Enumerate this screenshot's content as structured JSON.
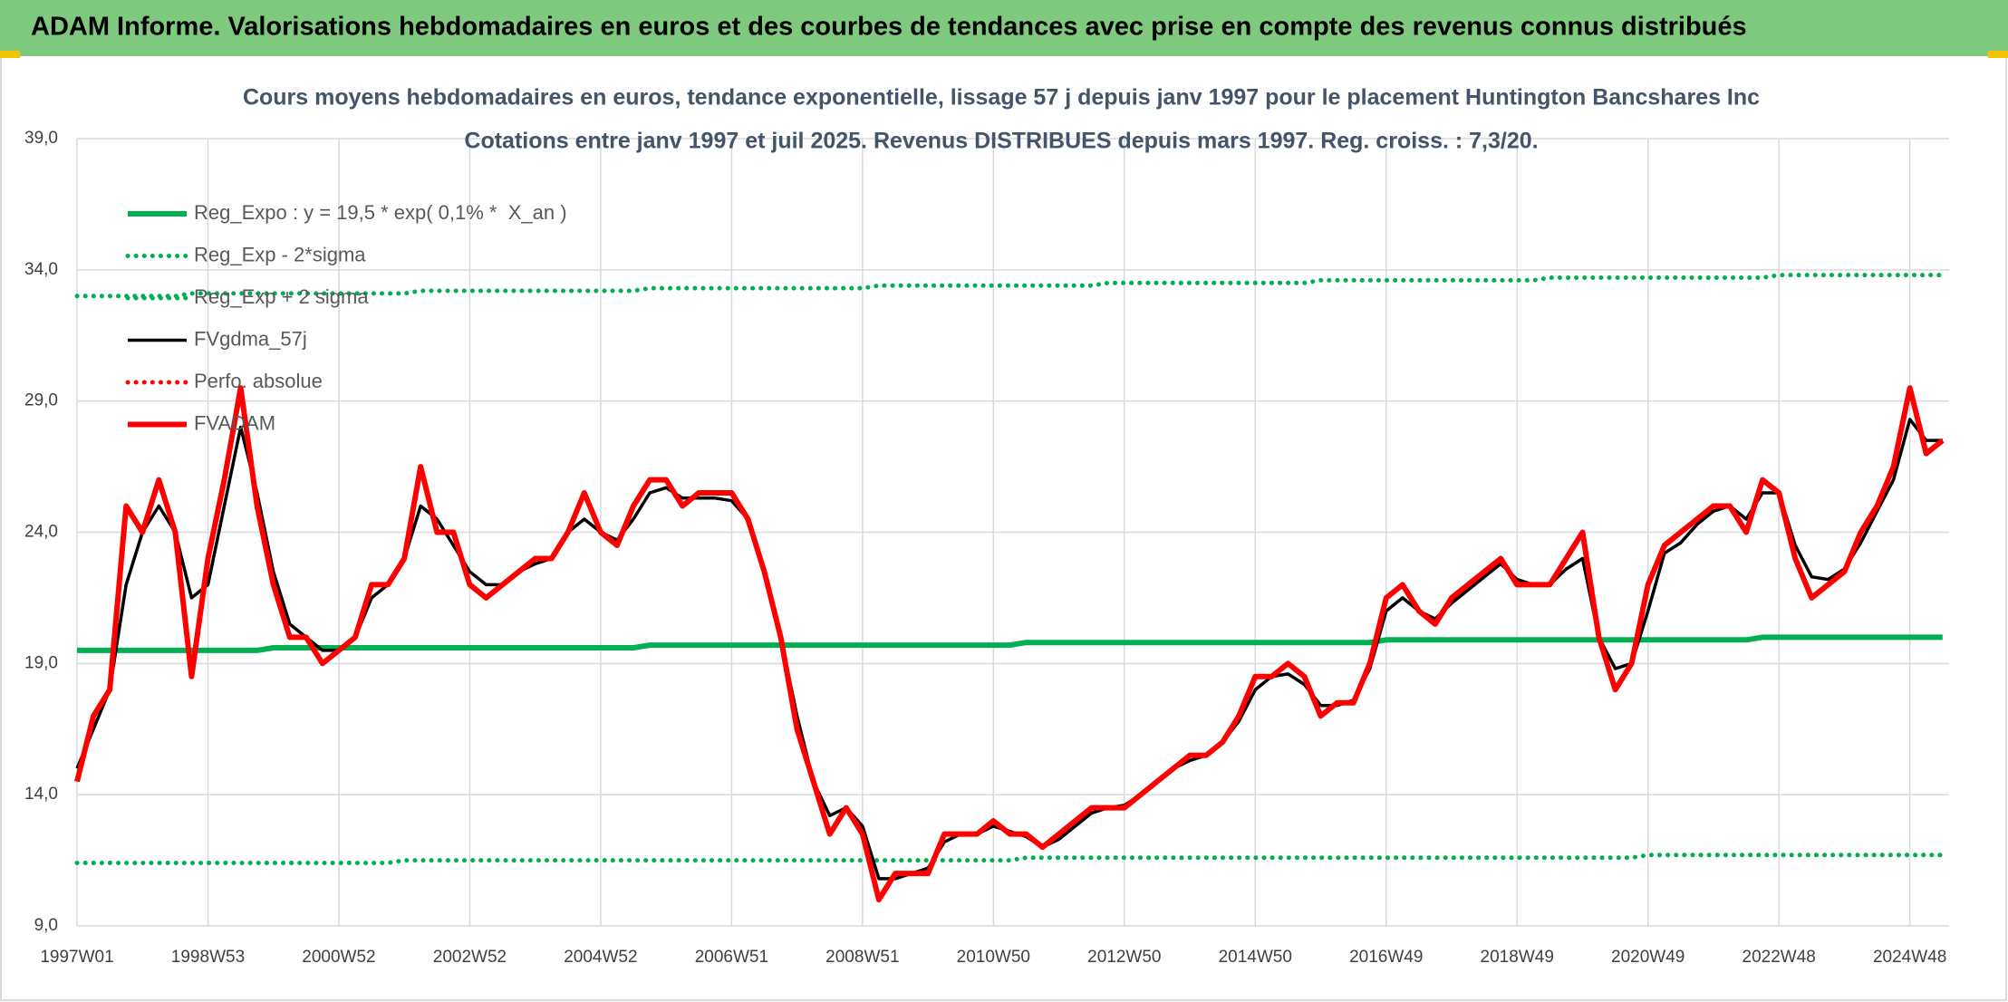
{
  "header_title": "ADAM Informe. Valorisations hebdomadaires en euros et des courbes de tendances avec prise en compte des revenus connus distribués",
  "chart_data": {
    "type": "line",
    "title": "Cours moyens hebdomadaires en euros, tendance exponentielle, lissage 57 j depuis janv 1997 pour le placement Huntington Bancshares Inc",
    "subtitle": "Cotations entre janv 1997 et juil 2025. Revenus DISTRIBUES depuis mars 1997. Reg. croiss. : 7,3/20.",
    "categories": [
      "1997W01",
      null,
      null,
      null,
      null,
      null,
      null,
      null,
      "1998W53",
      null,
      null,
      null,
      null,
      null,
      null,
      null,
      "2000W52",
      null,
      null,
      null,
      null,
      null,
      null,
      null,
      "2002W52",
      null,
      null,
      null,
      null,
      null,
      null,
      null,
      "2004W52",
      null,
      null,
      null,
      null,
      null,
      null,
      null,
      "2006W51",
      null,
      null,
      null,
      null,
      null,
      null,
      null,
      "2008W51",
      null,
      null,
      null,
      null,
      null,
      null,
      null,
      "2010W50",
      null,
      null,
      null,
      null,
      null,
      null,
      null,
      "2012W50",
      null,
      null,
      null,
      null,
      null,
      null,
      null,
      "2014W50",
      null,
      null,
      null,
      null,
      null,
      null,
      null,
      "2016W49",
      null,
      null,
      null,
      null,
      null,
      null,
      null,
      "2018W49",
      null,
      null,
      null,
      null,
      null,
      null,
      null,
      "2020W49",
      null,
      null,
      null,
      null,
      null,
      null,
      null,
      "2022W48",
      null,
      null,
      null,
      null,
      null,
      null,
      null,
      "2024W48",
      null,
      null
    ],
    "ylim": [
      9,
      39.5
    ],
    "yticks": [
      {
        "value": 9,
        "label": "9,0"
      },
      {
        "value": 14,
        "label": "14,0"
      },
      {
        "value": 19,
        "label": "19,0"
      },
      {
        "value": 24,
        "label": "24,0"
      },
      {
        "value": 29,
        "label": "29,0"
      },
      {
        "value": 34,
        "label": "34,0"
      },
      {
        "value": 39,
        "label": "39,0"
      }
    ],
    "grid": true,
    "legend": "top-left",
    "series": [
      {
        "name": "Reg_Expo : y = 19,5 * exp( 0,1% *  X_an )",
        "color": "#00b050",
        "dash": false,
        "values": [
          19.5,
          19.5,
          19.5,
          19.5,
          19.5,
          19.5,
          19.5,
          19.5,
          19.5,
          19.5,
          19.5,
          19.5,
          19.6,
          19.6,
          19.6,
          19.6,
          19.6,
          19.6,
          19.6,
          19.6,
          19.6,
          19.6,
          19.6,
          19.6,
          19.6,
          19.6,
          19.6,
          19.6,
          19.6,
          19.6,
          19.6,
          19.6,
          19.6,
          19.6,
          19.6,
          19.7,
          19.7,
          19.7,
          19.7,
          19.7,
          19.7,
          19.7,
          19.7,
          19.7,
          19.7,
          19.7,
          19.7,
          19.7,
          19.7,
          19.7,
          19.7,
          19.7,
          19.7,
          19.7,
          19.7,
          19.7,
          19.7,
          19.7,
          19.8,
          19.8,
          19.8,
          19.8,
          19.8,
          19.8,
          19.8,
          19.8,
          19.8,
          19.8,
          19.8,
          19.8,
          19.8,
          19.8,
          19.8,
          19.8,
          19.8,
          19.8,
          19.8,
          19.8,
          19.8,
          19.8,
          19.9,
          19.9,
          19.9,
          19.9,
          19.9,
          19.9,
          19.9,
          19.9,
          19.9,
          19.9,
          19.9,
          19.9,
          19.9,
          19.9,
          19.9,
          19.9,
          19.9,
          19.9,
          19.9,
          19.9,
          19.9,
          19.9,
          19.9,
          20.0,
          20.0,
          20.0,
          20.0,
          20.0,
          20.0,
          20.0,
          20.0,
          20.0,
          20.0,
          20.0,
          20.0
        ]
      },
      {
        "name": "Reg_Exp - 2*sigma",
        "color": "#00b050",
        "dash": true,
        "values": [
          11.4,
          11.4,
          11.4,
          11.4,
          11.4,
          11.4,
          11.4,
          11.4,
          11.4,
          11.4,
          11.4,
          11.4,
          11.4,
          11.4,
          11.4,
          11.4,
          11.4,
          11.4,
          11.4,
          11.4,
          11.5,
          11.5,
          11.5,
          11.5,
          11.5,
          11.5,
          11.5,
          11.5,
          11.5,
          11.5,
          11.5,
          11.5,
          11.5,
          11.5,
          11.5,
          11.5,
          11.5,
          11.5,
          11.5,
          11.5,
          11.5,
          11.5,
          11.5,
          11.5,
          11.5,
          11.5,
          11.5,
          11.5,
          11.5,
          11.5,
          11.5,
          11.5,
          11.5,
          11.5,
          11.5,
          11.5,
          11.5,
          11.5,
          11.6,
          11.6,
          11.6,
          11.6,
          11.6,
          11.6,
          11.6,
          11.6,
          11.6,
          11.6,
          11.6,
          11.6,
          11.6,
          11.6,
          11.6,
          11.6,
          11.6,
          11.6,
          11.6,
          11.6,
          11.6,
          11.6,
          11.6,
          11.6,
          11.6,
          11.6,
          11.6,
          11.6,
          11.6,
          11.6,
          11.6,
          11.6,
          11.6,
          11.6,
          11.6,
          11.6,
          11.6,
          11.6,
          11.7,
          11.7,
          11.7,
          11.7,
          11.7,
          11.7,
          11.7,
          11.7,
          11.7,
          11.7,
          11.7,
          11.7,
          11.7,
          11.7,
          11.7,
          11.7,
          11.7,
          11.7,
          11.7
        ]
      },
      {
        "name": "Reg_Exp + 2 sigma",
        "color": "#00b050",
        "dash": true,
        "values": [
          33.0,
          33.0,
          33.0,
          33.0,
          33.0,
          33.0,
          33.0,
          33.1,
          33.1,
          33.1,
          33.1,
          33.1,
          33.1,
          33.1,
          33.1,
          33.1,
          33.1,
          33.1,
          33.1,
          33.1,
          33.1,
          33.2,
          33.2,
          33.2,
          33.2,
          33.2,
          33.2,
          33.2,
          33.2,
          33.2,
          33.2,
          33.2,
          33.2,
          33.2,
          33.2,
          33.3,
          33.3,
          33.3,
          33.3,
          33.3,
          33.3,
          33.3,
          33.3,
          33.3,
          33.3,
          33.3,
          33.3,
          33.3,
          33.3,
          33.4,
          33.4,
          33.4,
          33.4,
          33.4,
          33.4,
          33.4,
          33.4,
          33.4,
          33.4,
          33.4,
          33.4,
          33.4,
          33.4,
          33.5,
          33.5,
          33.5,
          33.5,
          33.5,
          33.5,
          33.5,
          33.5,
          33.5,
          33.5,
          33.5,
          33.5,
          33.5,
          33.6,
          33.6,
          33.6,
          33.6,
          33.6,
          33.6,
          33.6,
          33.6,
          33.6,
          33.6,
          33.6,
          33.6,
          33.6,
          33.6,
          33.7,
          33.7,
          33.7,
          33.7,
          33.7,
          33.7,
          33.7,
          33.7,
          33.7,
          33.7,
          33.7,
          33.7,
          33.7,
          33.7,
          33.8,
          33.8,
          33.8,
          33.8,
          33.8,
          33.8,
          33.8,
          33.8,
          33.8,
          33.8,
          33.8
        ]
      },
      {
        "name": "FVgdma_57j",
        "color": "#000000",
        "dash": false,
        "values": [
          15,
          16.5,
          18,
          22,
          24,
          25,
          24,
          21.5,
          22,
          25,
          28,
          25.5,
          22.5,
          20.5,
          20,
          19.5,
          19.5,
          20,
          21.5,
          22,
          23,
          25,
          24.5,
          23.5,
          22.5,
          22,
          22,
          22.5,
          22.8,
          23,
          24,
          24.5,
          24,
          23.7,
          24.5,
          25.5,
          25.7,
          25.3,
          25.3,
          25.3,
          25.2,
          24.5,
          22.5,
          20,
          17,
          14.5,
          13.2,
          13.5,
          12.8,
          10.8,
          10.8,
          11,
          11.2,
          12.2,
          12.5,
          12.5,
          12.8,
          12.6,
          12.4,
          12,
          12.3,
          12.8,
          13.3,
          13.5,
          13.6,
          14,
          14.5,
          15,
          15.3,
          15.5,
          16,
          16.8,
          18,
          18.5,
          18.6,
          18.2,
          17.4,
          17.4,
          17.6,
          18.8,
          21,
          21.5,
          21,
          20.7,
          21.3,
          21.8,
          22.3,
          22.8,
          22.2,
          22,
          22,
          22.6,
          23,
          20,
          18.8,
          19,
          21,
          23.2,
          23.6,
          24.3,
          24.8,
          25,
          24.5,
          25.5,
          25.5,
          23.5,
          22.3,
          22.2,
          22.6,
          23.6,
          24.8,
          26,
          28.3,
          27.5,
          27.5
        ]
      },
      {
        "name": "Perfo. absolue",
        "color": "#ff0000",
        "dash": true
      },
      {
        "name": "FVADAM",
        "color": "#ff0000",
        "dash": false,
        "values": [
          14.5,
          17,
          18,
          25,
          24,
          26,
          24,
          18.5,
          23,
          26,
          29.5,
          25,
          22,
          20,
          20,
          19,
          19.5,
          20,
          22,
          22,
          23,
          26.5,
          24,
          24,
          22,
          21.5,
          22,
          22.5,
          23,
          23,
          24,
          25.5,
          24,
          23.5,
          25,
          26,
          26,
          25,
          25.5,
          25.5,
          25.5,
          24.5,
          22.5,
          20,
          16.5,
          14.5,
          12.5,
          13.5,
          12.5,
          10,
          11,
          11,
          11,
          12.5,
          12.5,
          12.5,
          13,
          12.5,
          12.5,
          12,
          12.5,
          13,
          13.5,
          13.5,
          13.5,
          14,
          14.5,
          15,
          15.5,
          15.5,
          16,
          17,
          18.5,
          18.5,
          19,
          18.5,
          17,
          17.5,
          17.5,
          19,
          21.5,
          22,
          21,
          20.5,
          21.5,
          22,
          22.5,
          23,
          22,
          22,
          22,
          23,
          24,
          20,
          18,
          19,
          22,
          23.5,
          24,
          24.5,
          25,
          25,
          24,
          26,
          25.5,
          23,
          21.5,
          22,
          22.5,
          24,
          25,
          26.5,
          29.5,
          27,
          27.5
        ]
      }
    ]
  }
}
